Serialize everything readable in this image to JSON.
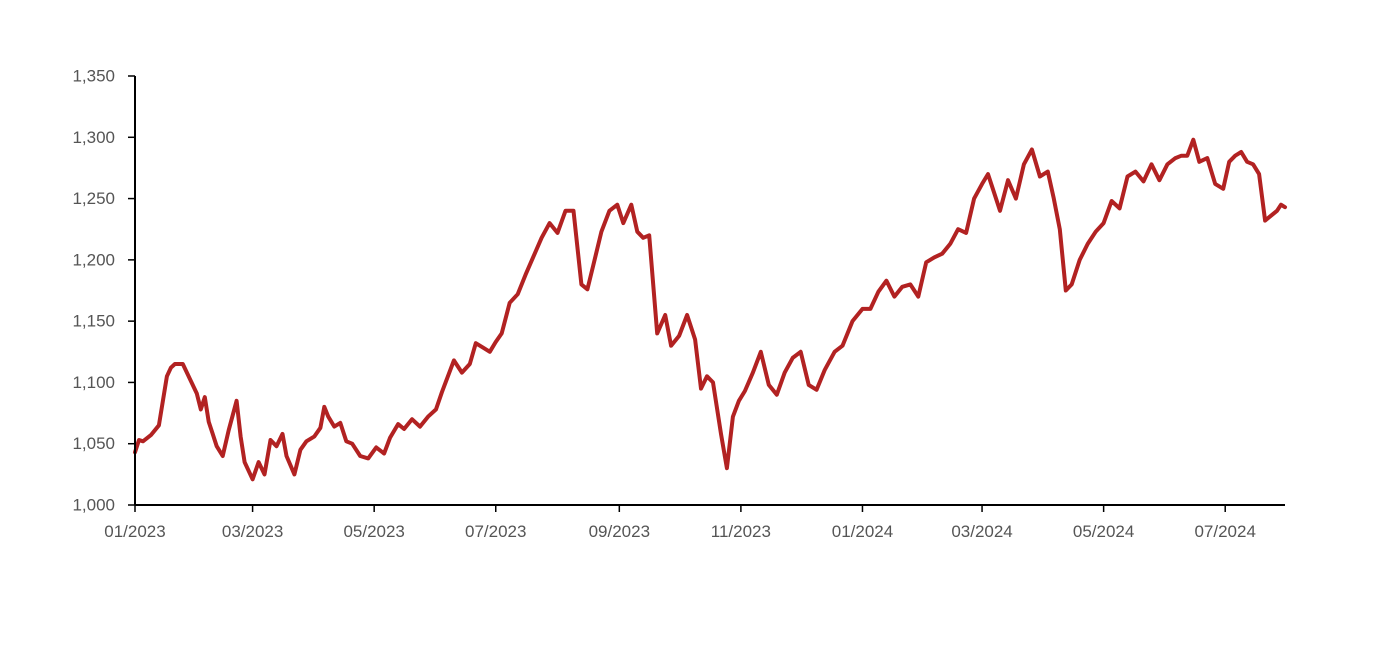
{
  "chart_data": {
    "type": "line",
    "title": "",
    "xlabel": "",
    "ylabel": "",
    "ylim": [
      1000,
      1350
    ],
    "xlim": [
      "2023-01-01",
      "2024-07-31"
    ],
    "grid": false,
    "legend": "none",
    "yticks": [
      {
        "value": 1000,
        "label": "1,000"
      },
      {
        "value": 1050,
        "label": "1,050"
      },
      {
        "value": 1100,
        "label": "1,100"
      },
      {
        "value": 1150,
        "label": "1,150"
      },
      {
        "value": 1200,
        "label": "1,200"
      },
      {
        "value": 1250,
        "label": "1,250"
      },
      {
        "value": 1300,
        "label": "1,300"
      },
      {
        "value": 1350,
        "label": "1,350"
      }
    ],
    "xticks": [
      {
        "value": "2023-01-01",
        "label": "01/2023"
      },
      {
        "value": "2023-03-01",
        "label": "03/2023"
      },
      {
        "value": "2023-05-01",
        "label": "05/2023"
      },
      {
        "value": "2023-07-01",
        "label": "07/2023"
      },
      {
        "value": "2023-09-01",
        "label": "09/2023"
      },
      {
        "value": "2023-11-01",
        "label": "11/2023"
      },
      {
        "value": "2024-01-01",
        "label": "01/2024"
      },
      {
        "value": "2024-03-01",
        "label": "03/2024"
      },
      {
        "value": "2024-05-01",
        "label": "05/2024"
      },
      {
        "value": "2024-07-01",
        "label": "07/2024"
      }
    ],
    "series": [
      {
        "color": "#b22222",
        "x": [
          "2023-01-01",
          "2023-01-03",
          "2023-01-05",
          "2023-01-09",
          "2023-01-13",
          "2023-01-17",
          "2023-01-19",
          "2023-01-21",
          "2023-01-25",
          "2023-02-01",
          "2023-02-03",
          "2023-02-05",
          "2023-02-07",
          "2023-02-09",
          "2023-02-11",
          "2023-02-14",
          "2023-02-17",
          "2023-02-21",
          "2023-02-23",
          "2023-02-25",
          "2023-03-01",
          "2023-03-04",
          "2023-03-07",
          "2023-03-10",
          "2023-03-13",
          "2023-03-16",
          "2023-03-18",
          "2023-03-22",
          "2023-03-25",
          "2023-03-28",
          "2023-04-01",
          "2023-04-04",
          "2023-04-06",
          "2023-04-08",
          "2023-04-11",
          "2023-04-14",
          "2023-04-17",
          "2023-04-20",
          "2023-04-24",
          "2023-04-28",
          "2023-05-02",
          "2023-05-06",
          "2023-05-09",
          "2023-05-13",
          "2023-05-16",
          "2023-05-20",
          "2023-05-24",
          "2023-05-28",
          "2023-06-01",
          "2023-06-04",
          "2023-06-07",
          "2023-06-10",
          "2023-06-14",
          "2023-06-18",
          "2023-06-21",
          "2023-06-25",
          "2023-06-28",
          "2023-07-01",
          "2023-07-04",
          "2023-07-08",
          "2023-07-12",
          "2023-07-16",
          "2023-07-20",
          "2023-07-24",
          "2023-07-28",
          "2023-08-01",
          "2023-08-05",
          "2023-08-09",
          "2023-08-13",
          "2023-08-16",
          "2023-08-19",
          "2023-08-23",
          "2023-08-27",
          "2023-08-31",
          "2023-09-03",
          "2023-09-07",
          "2023-09-10",
          "2023-09-13",
          "2023-09-16",
          "2023-09-20",
          "2023-09-24",
          "2023-09-27",
          "2023-10-01",
          "2023-10-05",
          "2023-10-09",
          "2023-10-12",
          "2023-10-15",
          "2023-10-18",
          "2023-10-22",
          "2023-10-25",
          "2023-10-28",
          "2023-10-31",
          "2023-11-03",
          "2023-11-07",
          "2023-11-11",
          "2023-11-15",
          "2023-11-19",
          "2023-11-23",
          "2023-11-27",
          "2023-12-01",
          "2023-12-05",
          "2023-12-09",
          "2023-12-13",
          "2023-12-18",
          "2023-12-22",
          "2023-12-27",
          "2024-01-01",
          "2024-01-05",
          "2024-01-09",
          "2024-01-13",
          "2024-01-17",
          "2024-01-21",
          "2024-01-25",
          "2024-01-29",
          "2024-02-02",
          "2024-02-06",
          "2024-02-10",
          "2024-02-14",
          "2024-02-18",
          "2024-02-22",
          "2024-02-26",
          "2024-03-01",
          "2024-03-04",
          "2024-03-07",
          "2024-03-10",
          "2024-03-14",
          "2024-03-18",
          "2024-03-22",
          "2024-03-26",
          "2024-03-30",
          "2024-04-03",
          "2024-04-06",
          "2024-04-09",
          "2024-04-12",
          "2024-04-15",
          "2024-04-19",
          "2024-04-23",
          "2024-04-27",
          "2024-05-01",
          "2024-05-05",
          "2024-05-09",
          "2024-05-13",
          "2024-05-17",
          "2024-05-21",
          "2024-05-25",
          "2024-05-29",
          "2024-06-02",
          "2024-06-06",
          "2024-06-09",
          "2024-06-12",
          "2024-06-15",
          "2024-06-18",
          "2024-06-22",
          "2024-06-26",
          "2024-06-30",
          "2024-07-03",
          "2024-07-06",
          "2024-07-09",
          "2024-07-12",
          "2024-07-15",
          "2024-07-18",
          "2024-07-21",
          "2024-07-24",
          "2024-07-27",
          "2024-07-29",
          "2024-07-31"
        ],
        "values": [
          1043,
          1053,
          1052,
          1057,
          1065,
          1105,
          1112,
          1115,
          1115,
          1091,
          1078,
          1088,
          1068,
          1058,
          1048,
          1040,
          1061,
          1085,
          1056,
          1035,
          1021,
          1035,
          1025,
          1053,
          1048,
          1058,
          1040,
          1025,
          1045,
          1052,
          1056,
          1063,
          1080,
          1072,
          1064,
          1067,
          1052,
          1050,
          1040,
          1038,
          1047,
          1042,
          1055,
          1066,
          1062,
          1070,
          1064,
          1072,
          1078,
          1092,
          1105,
          1118,
          1108,
          1115,
          1132,
          1128,
          1125,
          1133,
          1140,
          1165,
          1172,
          1188,
          1203,
          1218,
          1230,
          1222,
          1240,
          1240,
          1180,
          1176,
          1196,
          1223,
          1240,
          1245,
          1230,
          1245,
          1223,
          1218,
          1220,
          1140,
          1155,
          1130,
          1138,
          1155,
          1135,
          1095,
          1105,
          1100,
          1058,
          1030,
          1072,
          1085,
          1093,
          1108,
          1125,
          1098,
          1090,
          1108,
          1120,
          1125,
          1098,
          1094,
          1110,
          1125,
          1130,
          1150,
          1160,
          1160,
          1174,
          1183,
          1170,
          1178,
          1180,
          1170,
          1198,
          1202,
          1205,
          1213,
          1225,
          1222,
          1250,
          1262,
          1270,
          1255,
          1240,
          1265,
          1250,
          1278,
          1290,
          1268,
          1272,
          1250,
          1225,
          1175,
          1180,
          1200,
          1213,
          1223,
          1230,
          1248,
          1242,
          1268,
          1272,
          1264,
          1278,
          1265,
          1278,
          1283,
          1285,
          1285,
          1298,
          1280,
          1283,
          1262,
          1258,
          1280,
          1285,
          1288,
          1280,
          1278,
          1270,
          1232,
          1236,
          1240,
          1245,
          1243
        ]
      }
    ]
  }
}
